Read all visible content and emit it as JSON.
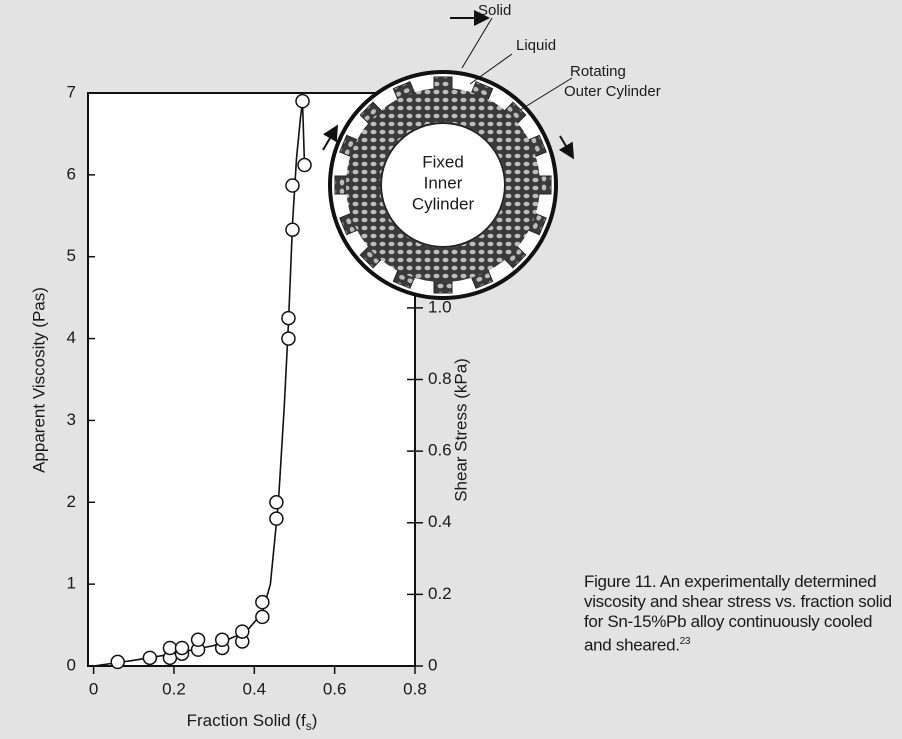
{
  "chart_data": {
    "type": "scatter",
    "xlabel": {
      "text": "Fraction Solid (f",
      "subscript": "s",
      "suffix": ")"
    },
    "ylabel": "Apparent Viscosity (Pas)",
    "y2label": "Shear Stress (kPa)",
    "xlim": [
      -0.014,
      0.8
    ],
    "xticks": [
      0,
      0.2,
      0.4,
      0.6,
      0.8
    ],
    "ylim": [
      0,
      7
    ],
    "yticks": [
      0,
      1,
      2,
      3,
      4,
      5,
      6,
      7
    ],
    "y2lim": [
      0,
      1.6
    ],
    "y2ticks": [
      0,
      0.2,
      0.4,
      0.6,
      0.8,
      {
        "value": 1,
        "label": "1.0"
      }
    ],
    "color": "#111111",
    "series": [
      {
        "marker": "circle",
        "x": [
          0.06,
          0.14,
          0.19,
          0.19,
          0.22,
          0.22,
          0.26,
          0.26,
          0.32,
          0.32,
          0.37,
          0.37,
          0.42,
          0.42,
          0.455,
          0.455,
          0.485,
          0.485,
          0.495,
          0.495,
          0.52,
          0.525
        ],
        "values": [
          0.05,
          0.1,
          0.1,
          0.22,
          0.15,
          0.22,
          0.2,
          0.32,
          0.22,
          0.32,
          0.3,
          0.42,
          0.6,
          0.78,
          1.8,
          2.0,
          4.0,
          4.25,
          5.33,
          5.87,
          6.9,
          6.12
        ]
      },
      {
        "marker": "none",
        "x": [
          0,
          0.1,
          0.2,
          0.3,
          0.38,
          0.42,
          0.44,
          0.46,
          0.475,
          0.485,
          0.495,
          0.505,
          0.515,
          0.52,
          0.525
        ],
        "values": [
          0,
          0.07,
          0.15,
          0.25,
          0.42,
          0.65,
          1.0,
          2.0,
          3.2,
          4.2,
          5.4,
          6.2,
          6.7,
          6.9,
          6.12
        ]
      }
    ]
  },
  "inset": {
    "solid": "Solid",
    "liquid": "Liquid",
    "rotating_1": "Rotating",
    "rotating_2": "Outer Cylinder",
    "fixed_1": "Fixed",
    "fixed_2": "Inner",
    "fixed_3": "Cylinder"
  },
  "caption": {
    "text": "Figure 11. An experimentally determined viscosity and shear stress vs. fraction solid for Sn-15%Pb alloy continuously cooled and sheared.",
    "ref": "23"
  }
}
